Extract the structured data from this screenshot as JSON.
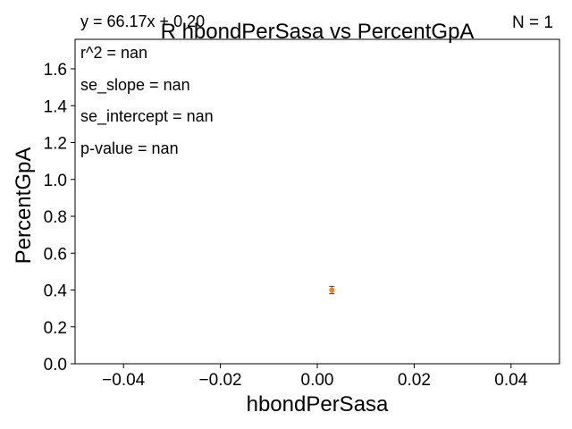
{
  "chart_data": {
    "type": "scatter",
    "title": "R hbondPerSasa vs PercentGpA",
    "xlabel": "hbondPerSasa",
    "ylabel": "PercentGpA",
    "xlim": [
      -0.05,
      0.05
    ],
    "ylim": [
      0.0,
      1.76
    ],
    "xticks": [
      -0.04,
      -0.02,
      0.0,
      0.02,
      0.04
    ],
    "xtick_labels": [
      "−0.04",
      "−0.02",
      "0.00",
      "0.02",
      "0.04"
    ],
    "yticks": [
      0.0,
      0.2,
      0.4,
      0.6,
      0.8,
      1.0,
      1.2,
      1.4,
      1.6
    ],
    "ytick_labels": [
      "0.0",
      "0.2",
      "0.4",
      "0.6",
      "0.8",
      "1.0",
      "1.2",
      "1.4",
      "1.6"
    ],
    "grid": false,
    "points": [
      {
        "x": 0.003,
        "y": 0.4,
        "yerr": 0.02,
        "color": "#ff7f0e",
        "errcolor": "#444444"
      }
    ],
    "annotations": {
      "equation": "y = 66.17x + 0.20",
      "n": "N = 1",
      "stats": [
        "r^2 = nan",
        "se_slope = nan",
        "se_intercept = nan",
        "p-value = nan"
      ]
    }
  }
}
